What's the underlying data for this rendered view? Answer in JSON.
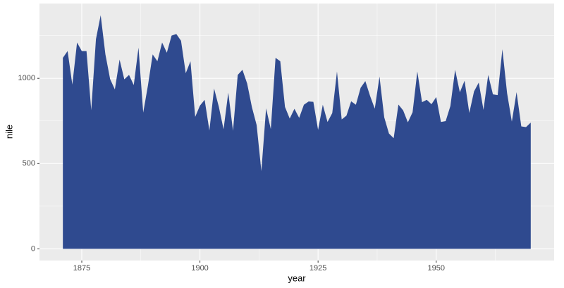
{
  "chart_data": {
    "type": "area",
    "x_label": "year",
    "y_label": "nile",
    "color": "#2f4a8f",
    "x": [
      1871,
      1872,
      1873,
      1874,
      1875,
      1876,
      1877,
      1878,
      1879,
      1880,
      1881,
      1882,
      1883,
      1884,
      1885,
      1886,
      1887,
      1888,
      1889,
      1890,
      1891,
      1892,
      1893,
      1894,
      1895,
      1896,
      1897,
      1898,
      1899,
      1900,
      1901,
      1902,
      1903,
      1904,
      1905,
      1906,
      1907,
      1908,
      1909,
      1910,
      1911,
      1912,
      1913,
      1914,
      1915,
      1916,
      1917,
      1918,
      1919,
      1920,
      1921,
      1922,
      1923,
      1924,
      1925,
      1926,
      1927,
      1928,
      1929,
      1930,
      1931,
      1932,
      1933,
      1934,
      1935,
      1936,
      1937,
      1938,
      1939,
      1940,
      1941,
      1942,
      1943,
      1944,
      1945,
      1946,
      1947,
      1948,
      1949,
      1950,
      1951,
      1952,
      1953,
      1954,
      1955,
      1956,
      1957,
      1958,
      1959,
      1960,
      1961,
      1962,
      1963,
      1964,
      1965,
      1966,
      1967,
      1968,
      1969,
      1970
    ],
    "values": [
      1120,
      1160,
      963,
      1210,
      1160,
      1160,
      813,
      1230,
      1370,
      1140,
      995,
      935,
      1110,
      994,
      1020,
      960,
      1180,
      799,
      958,
      1140,
      1100,
      1210,
      1150,
      1250,
      1260,
      1220,
      1030,
      1100,
      774,
      840,
      874,
      694,
      940,
      833,
      701,
      916,
      692,
      1020,
      1050,
      969,
      831,
      726,
      456,
      824,
      702,
      1120,
      1100,
      832,
      764,
      821,
      768,
      845,
      864,
      862,
      698,
      845,
      744,
      796,
      1040,
      759,
      781,
      865,
      845,
      944,
      984,
      897,
      822,
      1010,
      771,
      676,
      649,
      846,
      812,
      742,
      801,
      1040,
      860,
      874,
      848,
      890,
      744,
      749,
      838,
      1050,
      918,
      986,
      797,
      923,
      975,
      815,
      1020,
      906,
      901,
      1170,
      912,
      746,
      919,
      718,
      714,
      740
    ],
    "xlim": [
      1866.05,
      1974.95
    ],
    "ylim": [
      -68.5,
      1438.5
    ],
    "xticks": [
      1875,
      1900,
      1925,
      1950
    ],
    "yticks": [
      0,
      500,
      1000
    ],
    "minor_xticks": [
      1887.5,
      1912.5,
      1937.5,
      1962.5
    ],
    "minor_yticks": [
      250,
      750,
      1250
    ],
    "grid": true
  }
}
